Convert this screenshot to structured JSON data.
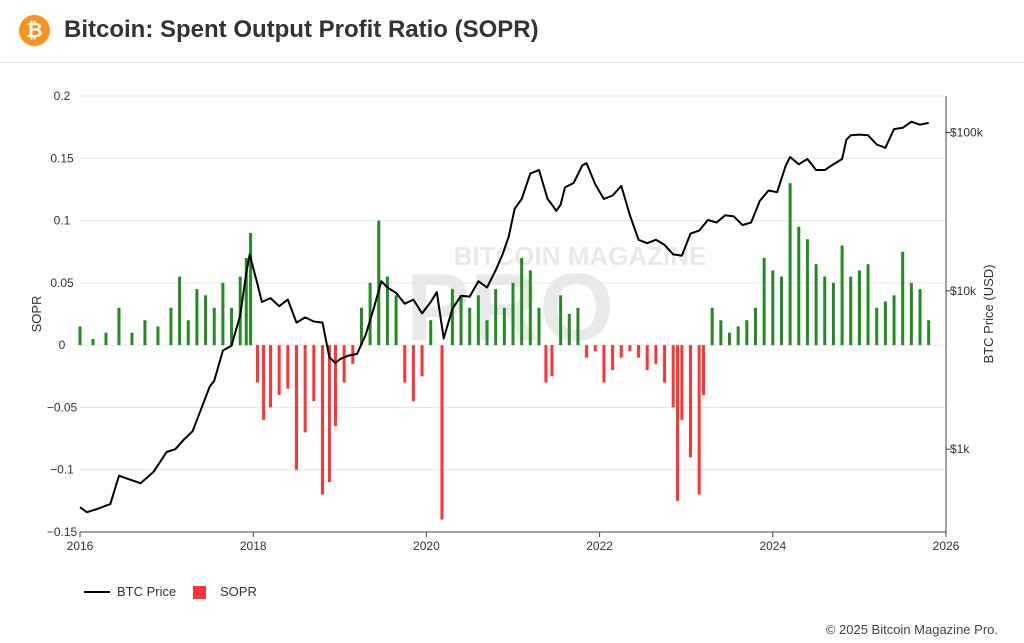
{
  "header": {
    "title": "Bitcoin: Spent Output Profit Ratio (SOPR)",
    "logo_glyph": "₿",
    "logo_color": "#f7931a"
  },
  "footer": {
    "credit": "© 2025 Bitcoin Magazine Pro."
  },
  "watermark": {
    "line1": "BITCOIN MAGAZINE",
    "line2": "PRO"
  },
  "chart_data": {
    "type": "bar+line",
    "title": "Bitcoin: Spent Output Profit Ratio (SOPR)",
    "x_axis": {
      "min": 2016,
      "max": 2026,
      "ticks": [
        "2016",
        "2018",
        "2020",
        "2022",
        "2024",
        "2026"
      ]
    },
    "y_axis_left": {
      "label": "SOPR",
      "min": -0.15,
      "max": 0.2,
      "ticks": [
        "0.2",
        "0.15",
        "0.1",
        "0.05",
        "0",
        "−0.05",
        "−0.1",
        "−0.15"
      ],
      "tick_values": [
        0.2,
        0.15,
        0.1,
        0.05,
        0,
        -0.05,
        -0.1,
        -0.15
      ]
    },
    "y_axis_right": {
      "label": "BTC Price (USD)",
      "scale": "log",
      "min": 300,
      "max": 170000,
      "ticks": [
        "$100k",
        "$10k",
        "$1k"
      ],
      "tick_values": [
        100000,
        10000,
        1000
      ]
    },
    "grid": true,
    "legend_position": "bottom-left",
    "legend": [
      {
        "name": "BTC Price",
        "color": "#000000",
        "kind": "line"
      },
      {
        "name": "SOPR",
        "color": "#ff3333",
        "kind": "bar"
      }
    ],
    "colors": {
      "positive": "#228b22",
      "negative": "#ff3333",
      "price": "#000000"
    },
    "series": [
      {
        "name": "BTC Price",
        "axis": "right",
        "x": [
          2016.0,
          2016.08,
          2016.2,
          2016.35,
          2016.45,
          2016.55,
          2016.7,
          2016.85,
          2017.0,
          2017.1,
          2017.2,
          2017.3,
          2017.4,
          2017.5,
          2017.55,
          2017.65,
          2017.75,
          2017.85,
          2017.92,
          2017.96,
          2018.0,
          2018.05,
          2018.1,
          2018.2,
          2018.3,
          2018.4,
          2018.5,
          2018.6,
          2018.7,
          2018.8,
          2018.88,
          2018.95,
          2019.0,
          2019.1,
          2019.2,
          2019.3,
          2019.4,
          2019.48,
          2019.55,
          2019.65,
          2019.75,
          2019.85,
          2019.95,
          2020.05,
          2020.12,
          2020.2,
          2020.3,
          2020.4,
          2020.5,
          2020.6,
          2020.7,
          2020.8,
          2020.88,
          2020.95,
          2021.02,
          2021.1,
          2021.2,
          2021.3,
          2021.4,
          2021.45,
          2021.5,
          2021.55,
          2021.6,
          2021.7,
          2021.8,
          2021.85,
          2021.95,
          2022.05,
          2022.15,
          2022.25,
          2022.35,
          2022.45,
          2022.55,
          2022.65,
          2022.75,
          2022.85,
          2022.95,
          2023.05,
          2023.15,
          2023.25,
          2023.35,
          2023.45,
          2023.55,
          2023.65,
          2023.75,
          2023.85,
          2023.95,
          2024.05,
          2024.15,
          2024.2,
          2024.3,
          2024.4,
          2024.5,
          2024.6,
          2024.7,
          2024.8,
          2024.85,
          2024.9,
          2025.0,
          2025.1,
          2025.2,
          2025.3,
          2025.4,
          2025.5,
          2025.6,
          2025.7,
          2025.8
        ],
        "values": [
          430,
          400,
          420,
          450,
          680,
          650,
          610,
          720,
          960,
          1000,
          1150,
          1300,
          1800,
          2500,
          2700,
          4200,
          4500,
          7000,
          13000,
          17000,
          14000,
          11000,
          8500,
          9000,
          8000,
          8800,
          6300,
          6800,
          6400,
          6300,
          3800,
          3500,
          3700,
          3900,
          4000,
          5300,
          8000,
          11500,
          10500,
          9700,
          8300,
          8800,
          7200,
          8500,
          9800,
          5000,
          7700,
          9300,
          9200,
          11500,
          10500,
          13500,
          17000,
          22000,
          33000,
          38000,
          55000,
          58000,
          38000,
          35000,
          32000,
          35000,
          45000,
          48000,
          62000,
          64000,
          47000,
          38000,
          40000,
          46000,
          30000,
          21000,
          20000,
          21000,
          19500,
          17000,
          16700,
          23000,
          24000,
          28000,
          27000,
          30000,
          29500,
          26000,
          27000,
          37000,
          43000,
          42000,
          62000,
          70000,
          63000,
          68000,
          58000,
          58000,
          63000,
          68000,
          90000,
          96000,
          97000,
          96000,
          84000,
          80000,
          105000,
          107000,
          117000,
          112000,
          115000
        ]
      },
      {
        "name": "SOPR",
        "axis": "left",
        "x": [
          2016.0,
          2016.15,
          2016.3,
          2016.45,
          2016.6,
          2016.75,
          2016.9,
          2017.05,
          2017.15,
          2017.25,
          2017.35,
          2017.45,
          2017.55,
          2017.65,
          2017.75,
          2017.85,
          2017.92,
          2017.97,
          2018.05,
          2018.12,
          2018.2,
          2018.3,
          2018.4,
          2018.5,
          2018.6,
          2018.7,
          2018.8,
          2018.88,
          2018.95,
          2019.05,
          2019.15,
          2019.25,
          2019.35,
          2019.45,
          2019.55,
          2019.65,
          2019.75,
          2019.85,
          2019.95,
          2020.05,
          2020.18,
          2020.3,
          2020.4,
          2020.5,
          2020.6,
          2020.7,
          2020.8,
          2020.9,
          2021.0,
          2021.1,
          2021.2,
          2021.3,
          2021.38,
          2021.45,
          2021.55,
          2021.65,
          2021.75,
          2021.85,
          2021.95,
          2022.05,
          2022.15,
          2022.25,
          2022.35,
          2022.45,
          2022.55,
          2022.65,
          2022.75,
          2022.85,
          2022.9,
          2022.95,
          2023.05,
          2023.15,
          2023.2,
          2023.3,
          2023.4,
          2023.5,
          2023.6,
          2023.7,
          2023.8,
          2023.9,
          2024.0,
          2024.1,
          2024.2,
          2024.3,
          2024.4,
          2024.5,
          2024.6,
          2024.7,
          2024.8,
          2024.9,
          2025.0,
          2025.1,
          2025.2,
          2025.3,
          2025.4,
          2025.5,
          2025.6,
          2025.7,
          2025.8
        ],
        "values": [
          0.015,
          0.005,
          0.01,
          0.03,
          0.01,
          0.02,
          0.015,
          0.03,
          0.055,
          0.02,
          0.045,
          0.04,
          0.03,
          0.05,
          0.03,
          0.055,
          0.07,
          0.09,
          -0.03,
          -0.06,
          -0.05,
          -0.04,
          -0.035,
          -0.1,
          -0.07,
          -0.045,
          -0.12,
          -0.11,
          -0.065,
          -0.03,
          -0.015,
          0.03,
          0.05,
          0.1,
          0.055,
          0.04,
          -0.03,
          -0.045,
          -0.025,
          0.02,
          -0.14,
          0.045,
          0.04,
          0.03,
          0.04,
          0.02,
          0.045,
          0.03,
          0.05,
          0.07,
          0.06,
          0.03,
          -0.03,
          -0.025,
          0.04,
          0.025,
          0.03,
          -0.01,
          -0.005,
          -0.03,
          -0.02,
          -0.01,
          -0.005,
          -0.01,
          -0.02,
          -0.015,
          -0.03,
          -0.05,
          -0.125,
          -0.06,
          -0.09,
          -0.12,
          -0.04,
          0.03,
          0.02,
          0.01,
          0.015,
          0.02,
          0.03,
          0.07,
          0.06,
          0.055,
          0.13,
          0.095,
          0.085,
          0.065,
          0.055,
          0.05,
          0.08,
          0.055,
          0.06,
          0.065,
          0.03,
          0.035,
          0.04,
          0.075,
          0.05,
          0.045,
          0.02
        ]
      }
    ]
  }
}
